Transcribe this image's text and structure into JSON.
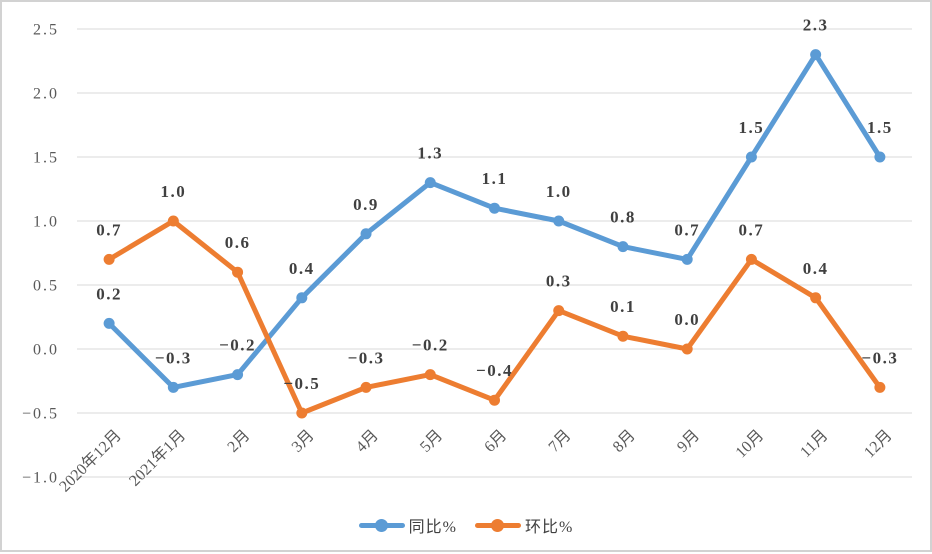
{
  "chart_data": {
    "type": "line",
    "title": "",
    "categories": [
      "2020年12月",
      "2021年1月",
      "2月",
      "3月",
      "4月",
      "5月",
      "6月",
      "7月",
      "8月",
      "9月",
      "10月",
      "11月",
      "12月"
    ],
    "series": [
      {
        "name": "同比%",
        "color": "#5B9BD5",
        "values": [
          0.2,
          -0.3,
          -0.2,
          0.4,
          0.9,
          1.3,
          1.1,
          1.0,
          0.8,
          0.7,
          1.5,
          2.3,
          1.5
        ]
      },
      {
        "name": "环比%",
        "color": "#ED7D31",
        "values": [
          0.7,
          1.0,
          0.6,
          -0.5,
          -0.3,
          -0.2,
          -0.4,
          0.3,
          0.1,
          0.0,
          0.7,
          0.4,
          -0.3
        ]
      }
    ],
    "y_axis": {
      "min": -1.0,
      "max": 2.5,
      "step": 0.5,
      "tick_labels": [
        "2.5",
        "2.0",
        "1.5",
        "1.0",
        "0.5",
        "0.0",
        "-0.5",
        "-1.0"
      ]
    },
    "x_axis": {
      "label_rotation_deg": 45
    },
    "grid": true,
    "data_labels": true,
    "data_label_decimals": 1,
    "legend_position": "bottom-center"
  },
  "colors": {
    "grid": "#D9D9D9",
    "axis_text": "#595959",
    "data_label_text": "#404040",
    "border": "#D2D2D2",
    "background": "#FFFFFF"
  }
}
